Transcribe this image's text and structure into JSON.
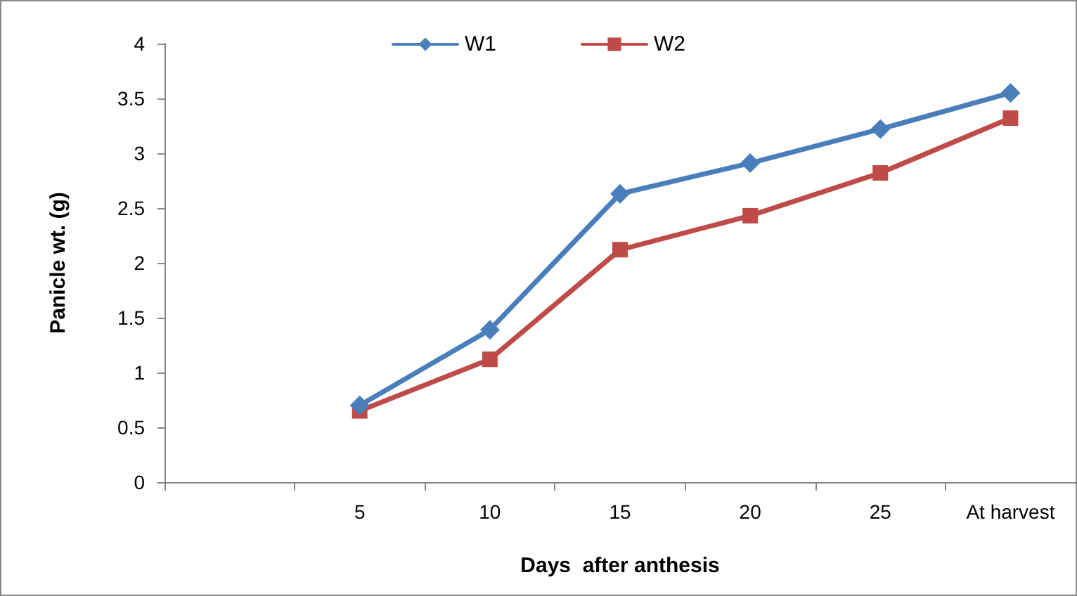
{
  "chart_data": {
    "type": "line",
    "xlabel": "Days  after anthesis",
    "ylabel": "Panicle wt. (g)",
    "categories": [
      null,
      "5",
      "10",
      "15",
      "20",
      "25",
      "At harvest"
    ],
    "series": [
      {
        "name": "W1",
        "color": "#4a7ebb",
        "marker": "diamond",
        "values": [
          null,
          0.7,
          1.39,
          2.63,
          2.91,
          3.22,
          3.55
        ]
      },
      {
        "name": "W2",
        "color": "#be4b48",
        "marker": "square",
        "values": [
          null,
          0.65,
          1.12,
          2.12,
          2.43,
          2.82,
          3.32
        ]
      }
    ],
    "ylim": [
      0,
      4
    ],
    "yticks": [
      0,
      0.5,
      1,
      1.5,
      2,
      2.5,
      3,
      3.5,
      4
    ],
    "grid": false,
    "legend": "top",
    "line_style": "solid"
  }
}
